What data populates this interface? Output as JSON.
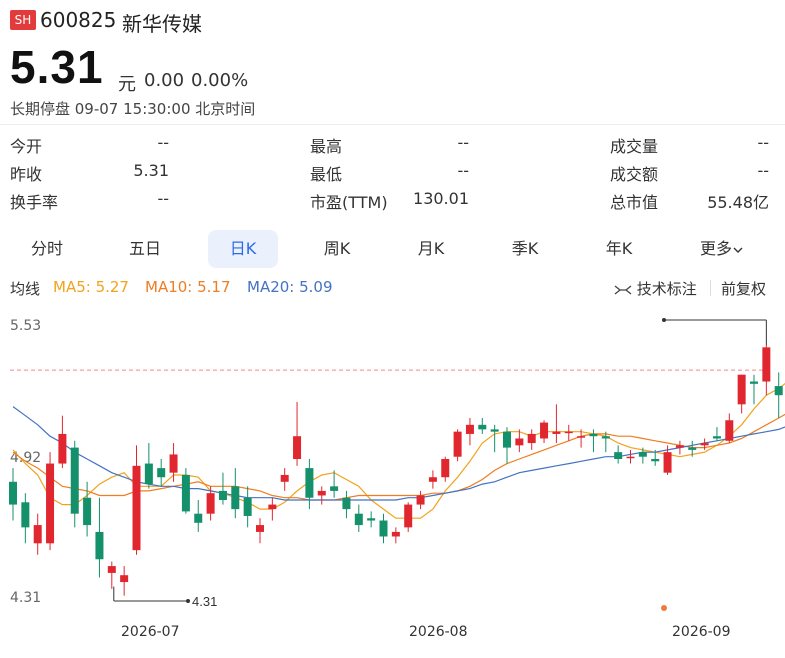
{
  "header": {
    "badge": "SH",
    "code": "600825",
    "name": "新华传媒",
    "price": "5.31",
    "unit": "元",
    "change": "0.00",
    "change_pct": "0.00%",
    "status": "长期停盘 09-07 15:30:00 北京时间"
  },
  "stats": {
    "open_label": "今开",
    "open_value": "--",
    "high_label": "最高",
    "high_value": "--",
    "volume_label": "成交量",
    "volume_value": "--",
    "prev_close_label": "昨收",
    "prev_close_value": "5.31",
    "low_label": "最低",
    "low_value": "--",
    "amount_label": "成交额",
    "amount_value": "--",
    "turnover_label": "换手率",
    "turnover_value": "--",
    "pe_label": "市盈(TTM)",
    "pe_value": "130.01",
    "mktcap_label": "总市值",
    "mktcap_value": "55.48亿"
  },
  "tabs": [
    {
      "label": "分时"
    },
    {
      "label": "五日"
    },
    {
      "label": "日K"
    },
    {
      "label": "周K"
    },
    {
      "label": "月K"
    },
    {
      "label": "季K"
    },
    {
      "label": "年K"
    },
    {
      "label": "更多"
    }
  ],
  "ma_bar": {
    "title": "均线",
    "ma5": "MA5: 5.27",
    "ma10": "MA10: 5.17",
    "ma20": "MA20: 5.09",
    "tech_label": "技术标注",
    "adjust_label": "前复权"
  },
  "colors": {
    "up": "#e0262f",
    "down": "#14906a",
    "ma5": "#f2a21b",
    "ma10": "#ef7d22",
    "ma20": "#4472c4",
    "accent": "#2c6be8"
  },
  "chart_data": {
    "type": "candlestick",
    "y_ticks": [
      "5.53",
      "4.92",
      "4.31"
    ],
    "ylim": [
      4.31,
      5.53
    ],
    "x_tick_labels": [
      "2026-07",
      "2026-08",
      "2026-09"
    ],
    "min_label": "4.31",
    "reference_line": 5.31,
    "candles": [
      [
        4.82,
        4.88,
        4.65,
        4.72
      ],
      [
        4.73,
        4.77,
        4.55,
        4.62
      ],
      [
        4.55,
        4.68,
        4.5,
        4.63
      ],
      [
        4.55,
        4.95,
        4.52,
        4.9
      ],
      [
        4.9,
        5.11,
        4.88,
        5.03
      ],
      [
        4.97,
        5.0,
        4.62,
        4.68
      ],
      [
        4.75,
        4.82,
        4.58,
        4.63
      ],
      [
        4.6,
        4.75,
        4.4,
        4.48
      ],
      [
        4.42,
        4.47,
        4.35,
        4.45
      ],
      [
        4.38,
        4.45,
        4.32,
        4.41
      ],
      [
        4.52,
        4.98,
        4.5,
        4.89
      ],
      [
        4.9,
        4.99,
        4.79,
        4.81
      ],
      [
        4.88,
        4.92,
        4.8,
        4.84
      ],
      [
        4.86,
        4.99,
        4.82,
        4.94
      ],
      [
        4.85,
        4.88,
        4.68,
        4.69
      ],
      [
        4.68,
        4.74,
        4.6,
        4.64
      ],
      [
        4.68,
        4.8,
        4.65,
        4.77
      ],
      [
        4.78,
        4.86,
        4.72,
        4.74
      ],
      [
        4.8,
        4.88,
        4.66,
        4.7
      ],
      [
        4.75,
        4.8,
        4.62,
        4.67
      ],
      [
        4.6,
        4.66,
        4.55,
        4.63
      ],
      [
        4.7,
        4.75,
        4.65,
        4.72
      ],
      [
        4.82,
        4.88,
        4.78,
        4.85
      ],
      [
        4.92,
        5.17,
        4.89,
        5.02
      ],
      [
        4.88,
        4.92,
        4.7,
        4.75
      ],
      [
        4.76,
        4.8,
        4.72,
        4.78
      ],
      [
        4.8,
        4.87,
        4.75,
        4.78
      ],
      [
        4.75,
        4.78,
        4.66,
        4.7
      ],
      [
        4.68,
        4.72,
        4.6,
        4.63
      ],
      [
        4.66,
        4.69,
        4.62,
        4.65
      ],
      [
        4.65,
        4.68,
        4.55,
        4.58
      ],
      [
        4.58,
        4.62,
        4.55,
        4.6
      ],
      [
        4.62,
        4.73,
        4.6,
        4.72
      ],
      [
        4.72,
        4.78,
        4.7,
        4.76
      ],
      [
        4.82,
        4.87,
        4.79,
        4.84
      ],
      [
        4.84,
        4.93,
        4.82,
        4.92
      ],
      [
        4.93,
        5.05,
        4.91,
        5.04
      ],
      [
        5.03,
        5.1,
        4.98,
        5.07
      ],
      [
        5.07,
        5.1,
        5.03,
        5.05
      ],
      [
        5.05,
        5.07,
        4.95,
        5.04
      ],
      [
        5.04,
        5.06,
        4.9,
        4.97
      ],
      [
        4.98,
        5.05,
        4.95,
        5.01
      ],
      [
        4.99,
        5.05,
        4.96,
        5.03
      ],
      [
        5.01,
        5.09,
        4.99,
        5.08
      ],
      [
        5.03,
        5.16,
        4.99,
        5.04
      ],
      [
        5.04,
        5.07,
        5.0,
        5.04
      ],
      [
        5.02,
        5.05,
        4.97,
        5.02
      ],
      [
        5.03,
        5.05,
        4.95,
        5.02
      ],
      [
        5.02,
        5.04,
        4.95,
        5.01
      ],
      [
        4.95,
        4.98,
        4.9,
        4.92
      ],
      [
        4.93,
        4.96,
        4.9,
        4.93
      ],
      [
        4.95,
        4.97,
        4.9,
        4.93
      ],
      [
        4.92,
        4.96,
        4.89,
        4.91
      ],
      [
        4.86,
        4.98,
        4.85,
        4.95
      ],
      [
        4.97,
        5.0,
        4.94,
        4.98
      ],
      [
        4.97,
        5.0,
        4.93,
        4.96
      ],
      [
        4.98,
        5.01,
        4.96,
        4.99
      ],
      [
        5.02,
        5.06,
        5.0,
        5.01
      ],
      [
        5.0,
        5.12,
        4.99,
        5.09
      ],
      [
        5.16,
        5.29,
        5.12,
        5.29
      ],
      [
        5.26,
        5.29,
        5.16,
        5.25
      ],
      [
        5.26,
        5.42,
        5.2,
        5.41
      ],
      [
        5.24,
        5.3,
        5.1,
        5.2
      ],
      [
        5.27,
        5.35,
        5.22,
        5.3
      ],
      [
        5.31,
        5.31,
        5.31,
        5.31
      ]
    ],
    "ma_series": [
      {
        "name": "MA5",
        "values": [
          4.96,
          4.9,
          4.85,
          4.75,
          4.72,
          4.72,
          4.76,
          4.81,
          4.84,
          4.86,
          4.8,
          4.8,
          4.8,
          4.85,
          4.85,
          4.84,
          4.78,
          4.77,
          4.75,
          4.73,
          4.7,
          4.7,
          4.73,
          4.78,
          4.82,
          4.85,
          4.86,
          4.83,
          4.8,
          4.74,
          4.7,
          4.66,
          4.66,
          4.66,
          4.7,
          4.78,
          4.84,
          4.91,
          4.99,
          5.03,
          5.04,
          5.04,
          5.02,
          5.04,
          5.04,
          5.04,
          5.04,
          5.03,
          5.02,
          4.99,
          4.97,
          4.96,
          4.95,
          4.94,
          4.93,
          4.94,
          4.95,
          4.98,
          5.02,
          5.07,
          5.14,
          5.2,
          5.23,
          5.27,
          5.27
        ]
      },
      {
        "name": "MA10",
        "values": [
          4.95,
          4.91,
          4.88,
          4.84,
          4.8,
          4.79,
          4.78,
          4.76,
          4.76,
          4.76,
          4.78,
          4.78,
          4.79,
          4.8,
          4.81,
          4.82,
          4.8,
          4.8,
          4.8,
          4.79,
          4.78,
          4.76,
          4.75,
          4.75,
          4.74,
          4.74,
          4.74,
          4.75,
          4.76,
          4.76,
          4.76,
          4.76,
          4.76,
          4.76,
          4.77,
          4.77,
          4.78,
          4.8,
          4.83,
          4.87,
          4.9,
          4.92,
          4.94,
          4.96,
          4.98,
          5.0,
          5.02,
          5.03,
          5.03,
          5.02,
          5.02,
          5.01,
          5.0,
          4.99,
          4.98,
          4.97,
          4.97,
          4.98,
          4.99,
          5.01,
          5.04,
          5.07,
          5.1,
          5.13,
          5.17
        ]
      },
      {
        "name": "MA20",
        "values": [
          5.15,
          5.11,
          5.07,
          5.02,
          4.99,
          4.95,
          4.92,
          4.89,
          4.86,
          4.84,
          4.82,
          4.81,
          4.8,
          4.8,
          4.79,
          4.79,
          4.78,
          4.77,
          4.76,
          4.75,
          4.75,
          4.75,
          4.74,
          4.74,
          4.74,
          4.74,
          4.74,
          4.74,
          4.74,
          4.74,
          4.74,
          4.74,
          4.75,
          4.75,
          4.76,
          4.77,
          4.78,
          4.79,
          4.81,
          4.82,
          4.84,
          4.86,
          4.87,
          4.88,
          4.89,
          4.9,
          4.91,
          4.92,
          4.93,
          4.93,
          4.94,
          4.95,
          4.95,
          4.96,
          4.97,
          4.98,
          4.99,
          5.0,
          5.01,
          5.02,
          5.03,
          5.04,
          5.05,
          5.07,
          5.09
        ]
      }
    ]
  }
}
